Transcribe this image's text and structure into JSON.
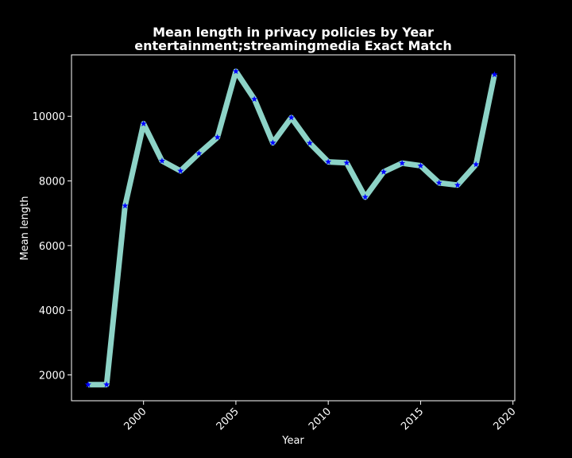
{
  "chart_data": {
    "type": "line",
    "title": "Mean length in privacy policies by Year",
    "subtitle": "entertainment;streamingmedia Exact Match",
    "xlabel": "Year",
    "ylabel": "Mean length",
    "xlim": [
      1996.1,
      2020.1
    ],
    "ylim": [
      1200,
      11900
    ],
    "xticks": [
      2000,
      2005,
      2010,
      2015,
      2020
    ],
    "yticks": [
      2000,
      4000,
      6000,
      8000,
      10000
    ],
    "grid": false,
    "legend": "none",
    "series": [
      {
        "x": [
          1997,
          1998,
          1999,
          2000,
          2001,
          2002,
          2003,
          2004,
          2005,
          2006,
          2007,
          2008,
          2009,
          2010,
          2011,
          2012,
          2013,
          2014,
          2015,
          2016,
          2017,
          2018,
          2019
        ],
        "y": [
          1700,
          1700,
          7230,
          9770,
          8620,
          8310,
          8850,
          9350,
          11390,
          10530,
          9180,
          9960,
          9170,
          8590,
          8560,
          7500,
          8280,
          8550,
          8470,
          7940,
          7870,
          8510,
          11290
        ],
        "line_color": "#8dd3c7",
        "marker": "star",
        "marker_color": "#0000ff"
      }
    ],
    "colors": {
      "background": "#000000",
      "axes": "#ffffff",
      "text": "#ffffff"
    }
  }
}
